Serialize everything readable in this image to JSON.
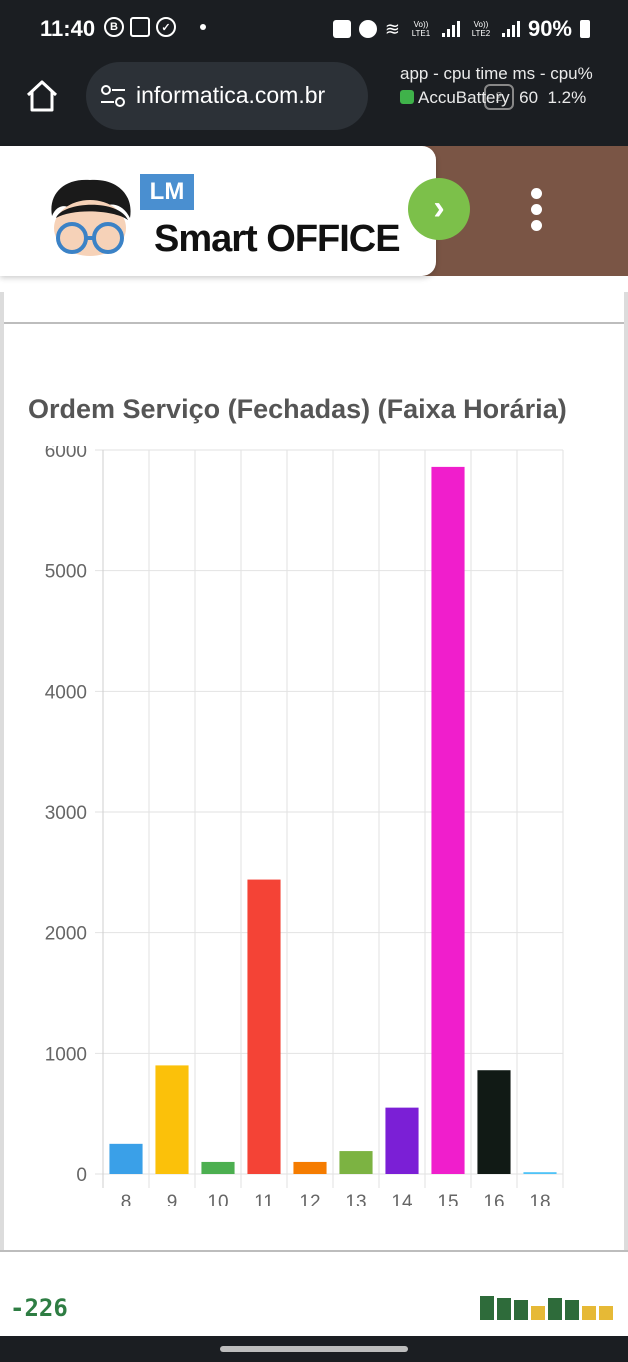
{
  "status_bar": {
    "time": "11:40",
    "battery": "90%",
    "lte1": "Vo)) LTE1",
    "lte2": "Vo)) LTE2"
  },
  "browser": {
    "url": "informatica.com.br",
    "overlay_line1": "app - cpu time ms - cpu%",
    "overlay_app": "AccuBattery",
    "overlay_ms": "60",
    "overlay_cpu": "1.2%",
    "tab_count": "2"
  },
  "site": {
    "logo_badge": "LM",
    "logo_text": "Smart OFFICE"
  },
  "chart_data": {
    "type": "bar",
    "title": "Ordem Serviço (Fechadas) (Faixa Horária)",
    "categories": [
      "8",
      "9",
      "10",
      "11",
      "12",
      "13",
      "14",
      "15",
      "16",
      "18"
    ],
    "values": [
      250,
      900,
      100,
      2440,
      100,
      190,
      550,
      5860,
      860,
      15
    ],
    "colors": [
      "#3aa0e8",
      "#fbc10a",
      "#4caf50",
      "#f44336",
      "#f57c00",
      "#7cb342",
      "#7b1fd6",
      "#f01ecc",
      "#111a15",
      "#4fc3f7"
    ],
    "ylim": [
      0,
      6000
    ],
    "yticks": [
      0,
      1000,
      2000,
      3000,
      4000,
      5000,
      6000
    ],
    "grid": true
  },
  "footer": {
    "counter": "-226"
  }
}
